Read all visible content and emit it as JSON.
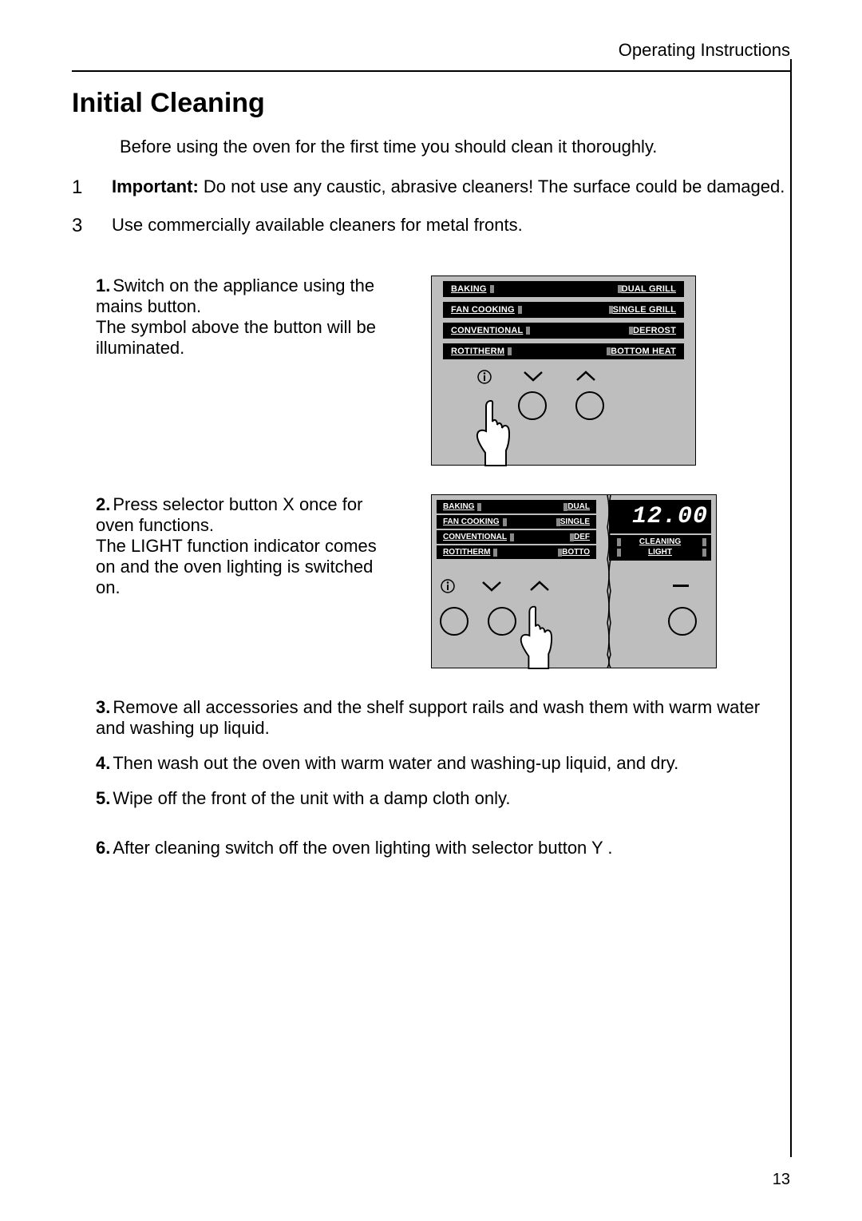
{
  "header": "Operating Instructions",
  "title": "Initial Cleaning",
  "intro": "Before using the oven for the first time you should clean it thoroughly.",
  "warn": {
    "marker": "1",
    "bold": "Important:",
    "text": " Do not use any caustic, abrasive cleaners! The surface could be damaged."
  },
  "tip": {
    "marker": "3",
    "text": "Use commercially available cleaners for metal fronts."
  },
  "step1": {
    "num": "1.",
    "line1": "Switch on the appliance using the mains button.",
    "line2": "The symbol above the button will be illuminated."
  },
  "step2": {
    "num": "2.",
    "line1_a": "Press selector button ",
    "line1_btn": "X",
    "line1_b": "  once for oven functions.",
    "line2": "The LIGHT function indicator comes on and the oven lighting is switched on."
  },
  "step3": {
    "num": "3.",
    "text": "Remove all accessories and the shelf support rails and wash them with warm water and washing up liquid."
  },
  "step4": {
    "num": "4.",
    "text": "Then wash out the oven with warm water and washing-up liquid, and dry."
  },
  "step5": {
    "num": "5.",
    "text": "Wipe off the front of the unit with a damp cloth only."
  },
  "step6": {
    "num": "6.",
    "text_a": "After cleaning switch off the oven lighting with selector button ",
    "btn": "Y",
    "text_b": " ."
  },
  "panel1": {
    "labels": [
      {
        "left": "BAKING",
        "right": "DUAL GRILL"
      },
      {
        "left": "FAN COOKING",
        "right": "SINGLE GRILL"
      },
      {
        "left": "CONVENTIONAL",
        "right": "DEFROST"
      },
      {
        "left": "ROTITHERM",
        "right": "BOTTOM HEAT"
      }
    ]
  },
  "panel2": {
    "left_labels": [
      {
        "left": "BAKING",
        "right": "DUAL"
      },
      {
        "left": "FAN COOKING",
        "right": "SINGLE"
      },
      {
        "left": "CONVENTIONAL",
        "right": "DEF"
      },
      {
        "left": "ROTITHERM",
        "right": "BOTTO"
      }
    ],
    "digital": "12.00",
    "right_labels": [
      {
        "label": "CLEANING"
      },
      {
        "label": "LIGHT"
      }
    ]
  },
  "page_number": "13",
  "colors": {
    "panel_bg": "#bebebe",
    "black": "#000000",
    "led": "#8a8a8a"
  }
}
